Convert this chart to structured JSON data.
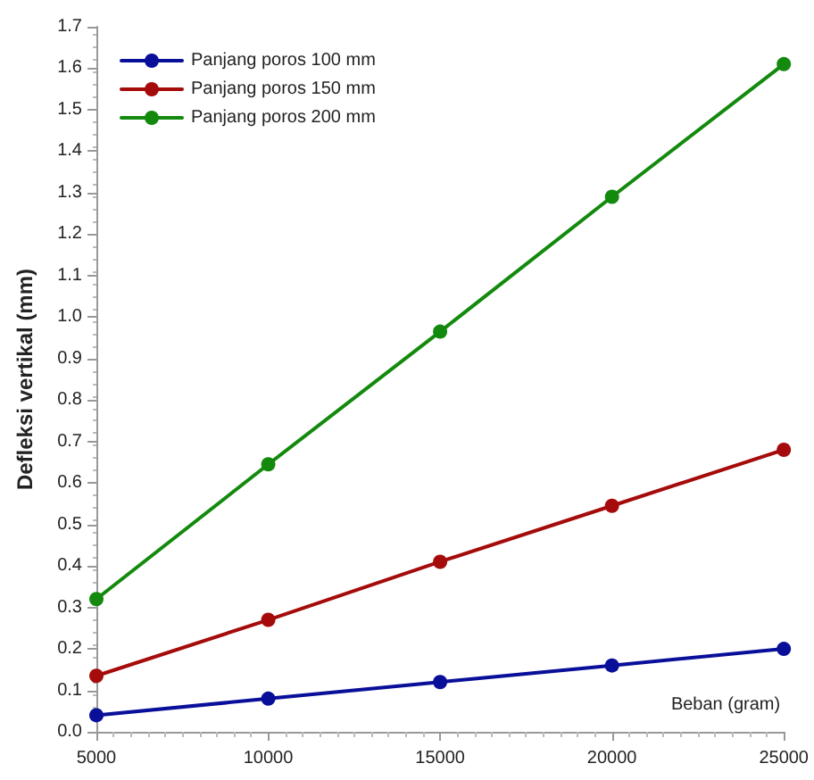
{
  "chart_data": {
    "type": "line",
    "xlabel": "Beban (gram)",
    "ylabel": "Defleksi vertikal (mm)",
    "x": [
      5000,
      10000,
      15000,
      20000,
      25000
    ],
    "series": [
      {
        "name": "Panjang poros 100 mm",
        "color": "#0a0f9a",
        "values": [
          0.04,
          0.08,
          0.12,
          0.16,
          0.2
        ]
      },
      {
        "name": "Panjang poros 150 mm",
        "color": "#a50b0b",
        "values": [
          0.135,
          0.27,
          0.41,
          0.545,
          0.68
        ]
      },
      {
        "name": "Panjang poros 200 mm",
        "color": "#138a0d",
        "values": [
          0.32,
          0.645,
          0.965,
          1.29,
          1.61
        ]
      }
    ],
    "xlim": [
      5000,
      25000
    ],
    "xticks": [
      5000,
      10000,
      15000,
      20000,
      25000
    ],
    "ylim": [
      0,
      1.7
    ],
    "yticks": [
      {
        "value": 0,
        "label": "0.0"
      },
      0.1,
      0.2,
      0.3,
      0.4,
      0.5,
      0.6,
      0.7,
      0.8,
      0.9,
      {
        "value": 1,
        "label": "1.0"
      },
      1.1,
      1.2,
      1.3,
      1.4,
      1.5,
      1.6,
      1.7
    ],
    "grid": false,
    "legend": "top left",
    "marker": "circle",
    "line_style": "solid"
  }
}
